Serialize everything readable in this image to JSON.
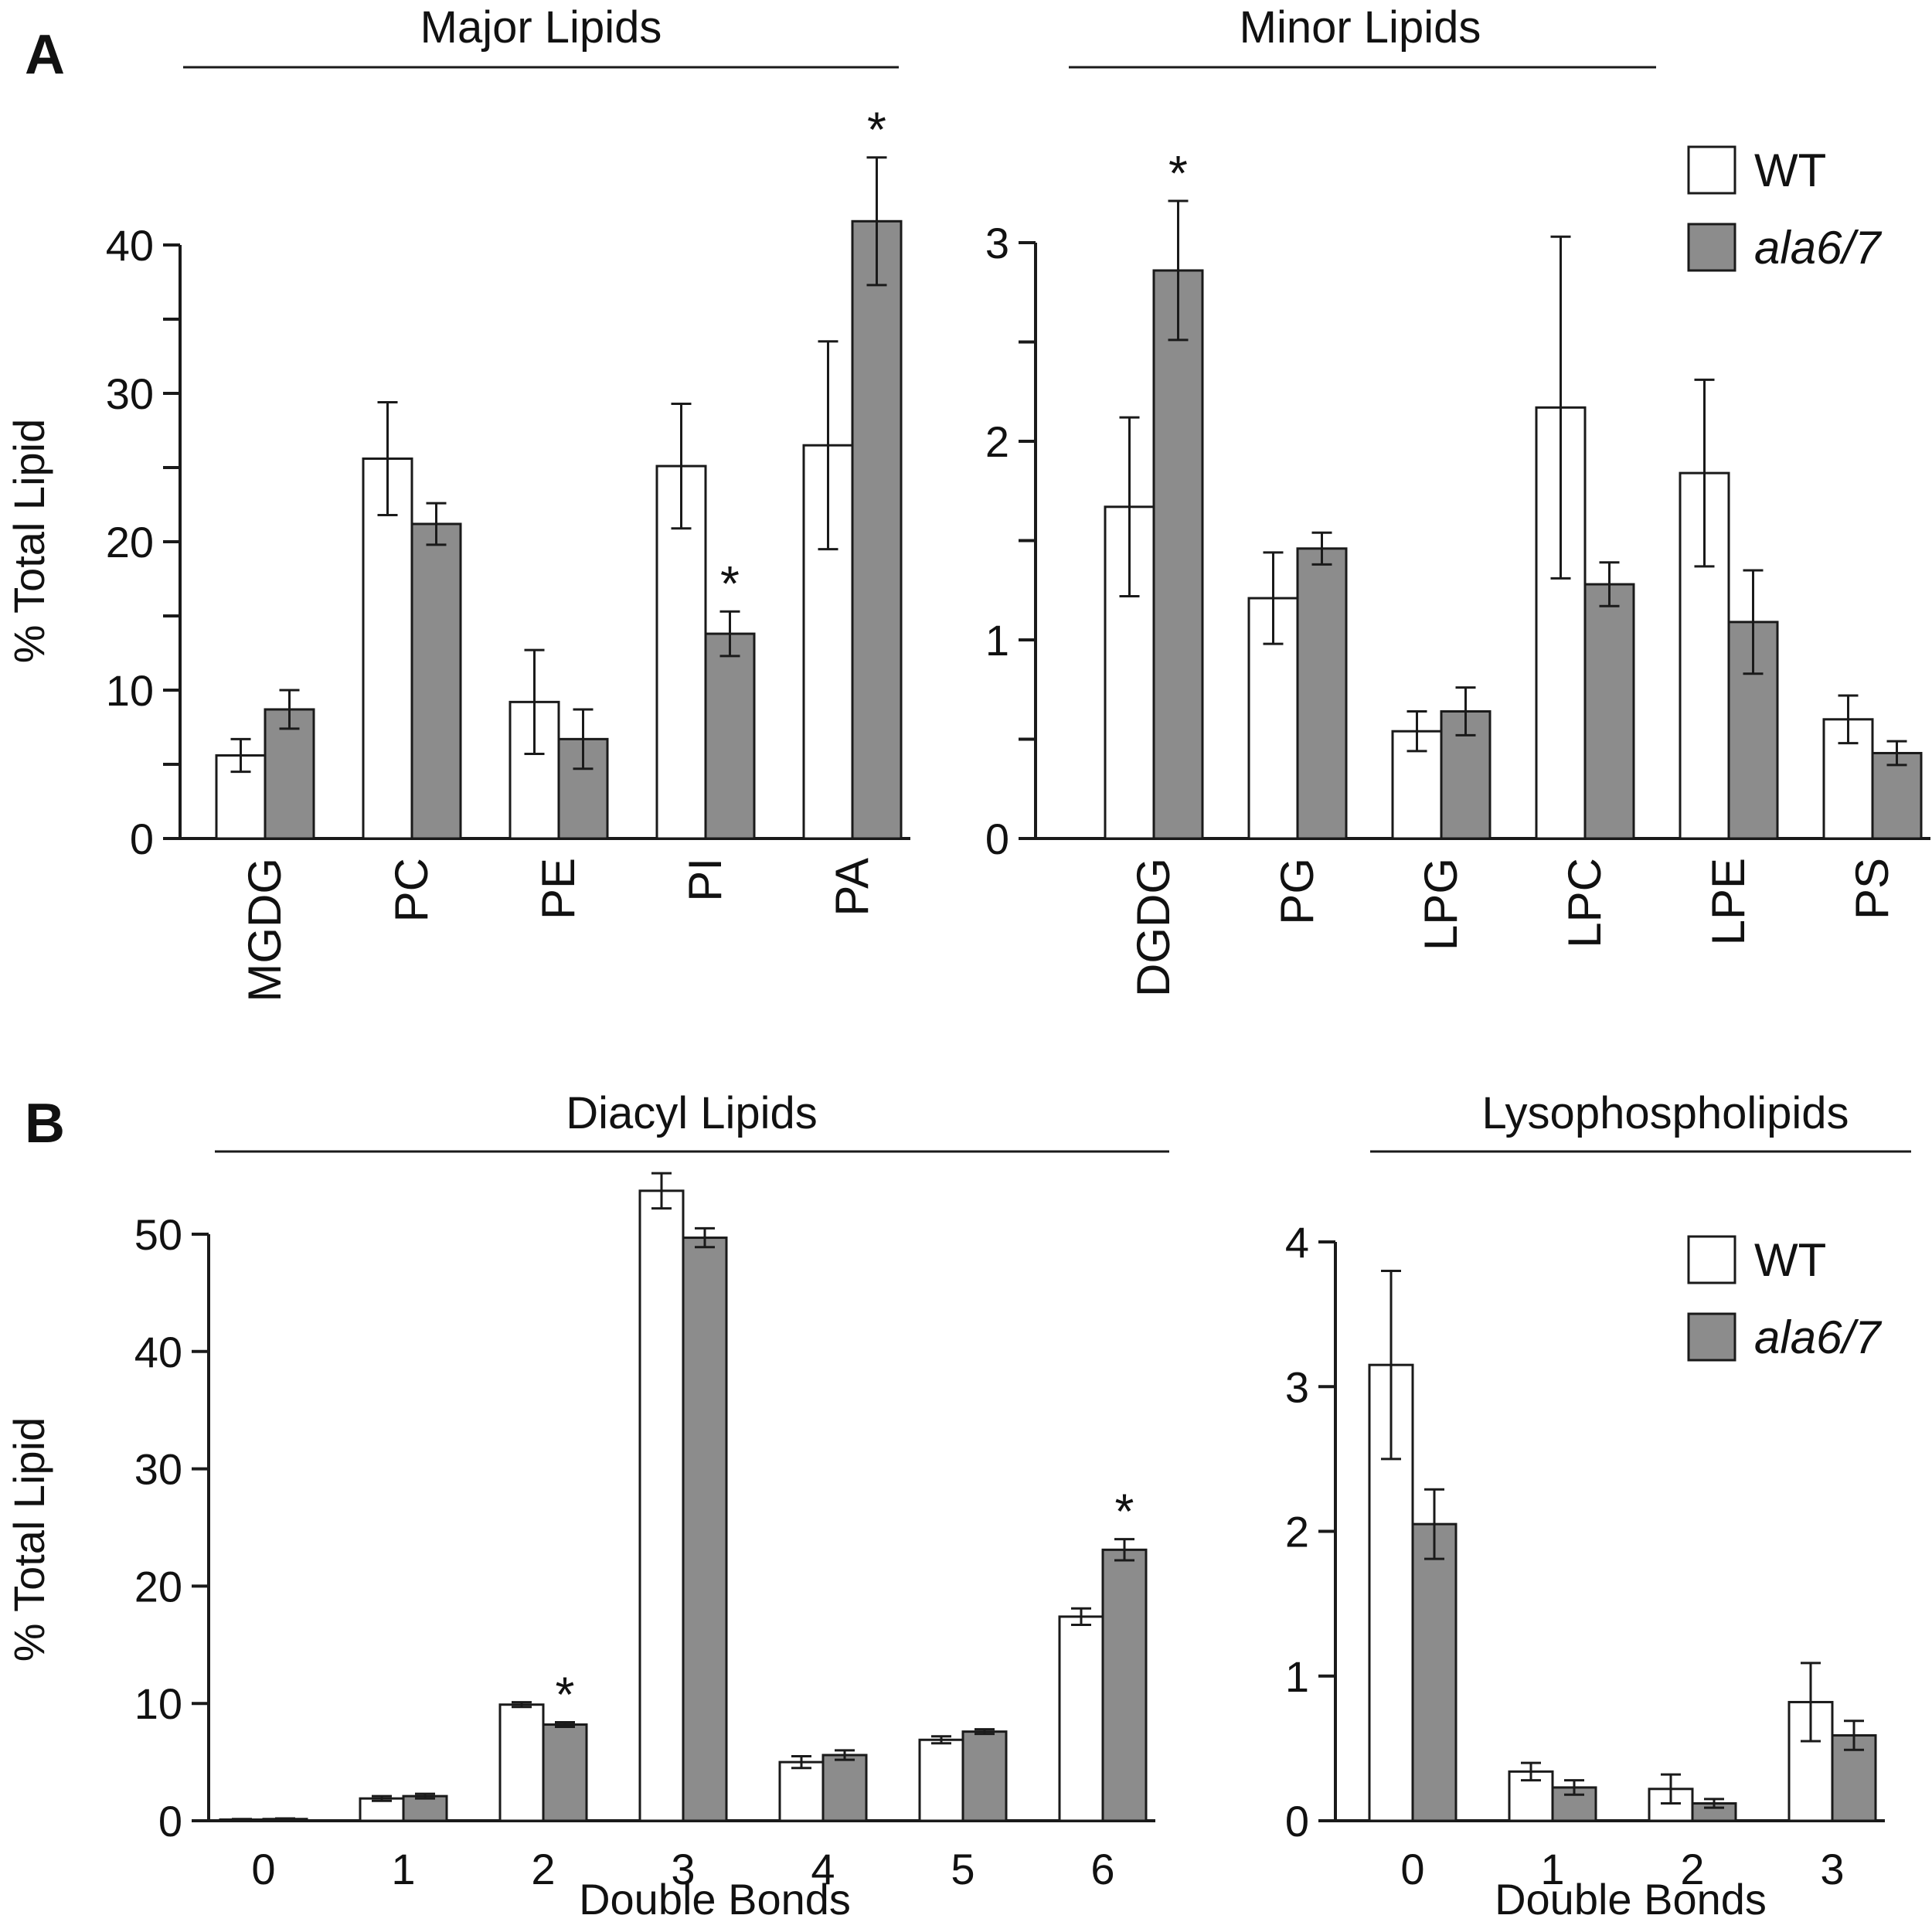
{
  "colors": {
    "wt": "#ffffff",
    "mutant": "#8c8c8c",
    "stroke": "#1a1a1a"
  },
  "panels": [
    {
      "label": "A"
    },
    {
      "label": "B"
    }
  ],
  "chart_data": [
    {
      "type": "bar",
      "panel": "A",
      "group_title": "Major Lipids",
      "ylabel": "% Total Lipid",
      "xlabel": "",
      "ylim": [
        0,
        40
      ],
      "yticks": [
        0,
        10,
        20,
        30,
        40
      ],
      "categories": [
        "MGDG",
        "PC",
        "PE",
        "PI",
        "PA"
      ],
      "series": [
        {
          "name": "WT",
          "values": [
            5.6,
            25.6,
            9.2,
            25.1,
            26.5
          ],
          "errors": [
            1.1,
            3.8,
            3.5,
            4.2,
            7.0
          ]
        },
        {
          "name": "ala6/7",
          "values": [
            8.7,
            21.2,
            6.7,
            13.8,
            41.6
          ],
          "errors": [
            1.3,
            1.4,
            2.0,
            1.5,
            4.3
          ]
        }
      ],
      "significant": [
        {
          "series": 1,
          "index": 3
        },
        {
          "series": 1,
          "index": 4
        }
      ]
    },
    {
      "type": "bar",
      "panel": "A",
      "group_title": "Minor Lipids",
      "ylabel": "",
      "xlabel": "",
      "ylim": [
        0,
        3
      ],
      "yticks": [
        0,
        1,
        2,
        3
      ],
      "categories": [
        "DGDG",
        "PG",
        "LPG",
        "LPC",
        "LPE",
        "PS"
      ],
      "legend": {
        "position": "top-right",
        "entries": [
          "WT",
          "ala6/7"
        ]
      },
      "series": [
        {
          "name": "WT",
          "values": [
            1.67,
            1.21,
            0.54,
            2.17,
            1.84,
            0.6
          ],
          "errors": [
            0.45,
            0.23,
            0.1,
            0.86,
            0.47,
            0.12
          ]
        },
        {
          "name": "ala6/7",
          "values": [
            2.86,
            1.46,
            0.64,
            1.28,
            1.09,
            0.43
          ],
          "errors": [
            0.35,
            0.08,
            0.12,
            0.11,
            0.26,
            0.06
          ]
        }
      ],
      "significant": [
        {
          "series": 1,
          "index": 0
        }
      ]
    },
    {
      "type": "bar",
      "panel": "B",
      "group_title": "Diacyl Lipids",
      "ylabel": "% Total Lipid",
      "xlabel": "Double Bonds",
      "ylim": [
        0,
        50
      ],
      "yticks": [
        0,
        10,
        20,
        30,
        40,
        50
      ],
      "categories": [
        "0",
        "1",
        "2",
        "3",
        "4",
        "5",
        "6"
      ],
      "series": [
        {
          "name": "WT",
          "values": [
            0.1,
            1.9,
            9.9,
            53.7,
            5.0,
            6.9,
            17.4
          ],
          "errors": [
            0.05,
            0.2,
            0.2,
            1.5,
            0.5,
            0.3,
            0.7
          ]
        },
        {
          "name": "ala6/7",
          "values": [
            0.15,
            2.1,
            8.2,
            49.7,
            5.6,
            7.6,
            23.1
          ],
          "errors": [
            0.05,
            0.2,
            0.2,
            0.8,
            0.4,
            0.2,
            0.9
          ]
        }
      ],
      "significant": [
        {
          "series": 1,
          "index": 2
        },
        {
          "series": 1,
          "index": 6
        }
      ]
    },
    {
      "type": "bar",
      "panel": "B",
      "group_title": "Lysophospholipids",
      "ylabel": "",
      "xlabel": "Double Bonds",
      "ylim": [
        0,
        4
      ],
      "yticks": [
        0,
        1,
        2,
        3,
        4
      ],
      "categories": [
        "0",
        "1",
        "2",
        "3"
      ],
      "legend": {
        "position": "top-right",
        "entries": [
          "WT",
          "ala6/7"
        ]
      },
      "series": [
        {
          "name": "WT",
          "values": [
            3.15,
            0.34,
            0.22,
            0.82
          ],
          "errors": [
            0.65,
            0.06,
            0.1,
            0.27
          ]
        },
        {
          "name": "ala6/7",
          "values": [
            2.05,
            0.23,
            0.12,
            0.59
          ],
          "errors": [
            0.24,
            0.05,
            0.03,
            0.1
          ]
        }
      ],
      "significant": []
    }
  ]
}
